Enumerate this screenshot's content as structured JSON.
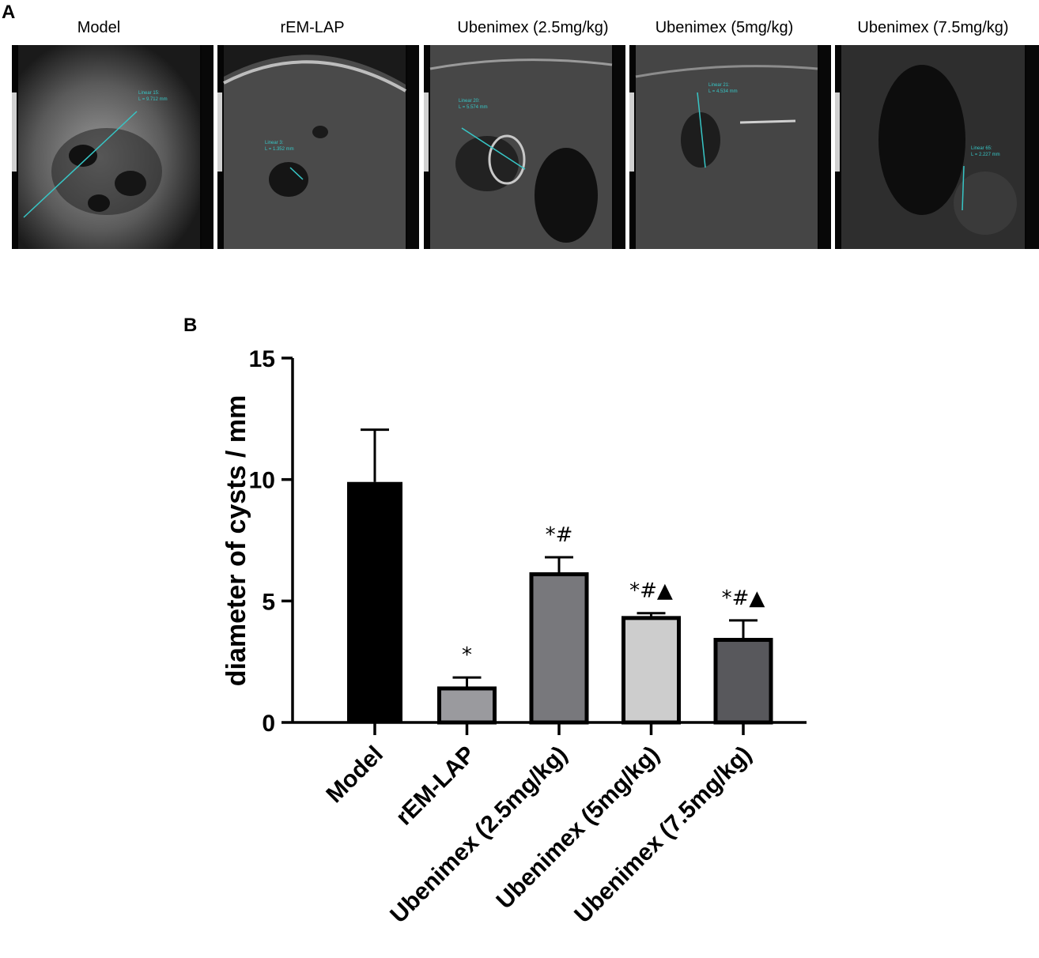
{
  "panels": {
    "a": "A",
    "b": "B"
  },
  "ultrasound": {
    "labels": [
      "Model",
      "rEM-LAP",
      "Ubenimex (2.5mg/kg)",
      "Ubenimex (5mg/kg)",
      "Ubenimex (7.5mg/kg)"
    ],
    "measurement_color": "#37c6c6"
  },
  "chart_data": {
    "type": "bar",
    "categories": [
      "Model",
      "rEM-LAP",
      "Ubenimex (2.5mg/kg)",
      "Ubenimex (5mg/kg)",
      "Ubenimex (7.5mg/kg)"
    ],
    "values": [
      9.9,
      1.4,
      6.1,
      4.3,
      3.4
    ],
    "errors": [
      2.15,
      0.45,
      0.7,
      0.2,
      0.8
    ],
    "significance": [
      "",
      "*",
      "*#",
      "*#▲",
      "*#▲"
    ],
    "colors": [
      "#000000",
      "#9a9a9e",
      "#78787c",
      "#cdcdcd",
      "#58585c"
    ],
    "ylabel": "diameter of cysts / mm",
    "ylim": [
      0,
      15
    ],
    "yticks": [
      "0",
      "5",
      "10",
      "15"
    ],
    "grid": false,
    "legend": "none"
  }
}
